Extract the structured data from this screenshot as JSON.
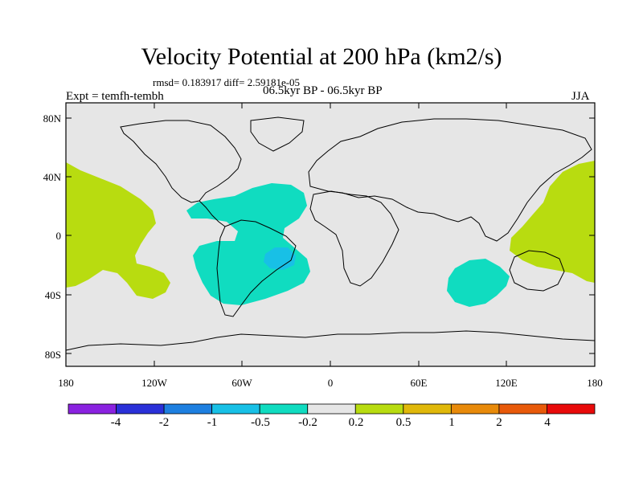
{
  "title": "Velocity Potential at 200 hPa (km2/s)",
  "stats": "rmsd= 0.183917  diff= 2.59181e-05",
  "experiment": "Expt = temfh-tembh",
  "period": "06.5kyr BP - 06.5kyr BP",
  "season": "JJA",
  "y_ticks": [
    "80N",
    "40N",
    "0",
    "40S",
    "80S"
  ],
  "x_ticks": [
    "180",
    "120W",
    "60W",
    "0",
    "60E",
    "120E",
    "180"
  ],
  "colorbar": {
    "colors": [
      "#8a22e0",
      "#2a30d8",
      "#1e7fe0",
      "#18c0e6",
      "#10dcc0",
      "#e6e6e6",
      "#b8dc10",
      "#e0b80a",
      "#e88a0a",
      "#e85a0a",
      "#e80a0a"
    ],
    "labels": [
      "-4",
      "-2",
      "-1",
      "-0.5",
      "-0.2",
      "0.2",
      "0.5",
      "1",
      "2",
      "4"
    ]
  },
  "colors": {
    "background": "#e6e6e6",
    "positive": "#b8dc10",
    "negative": "#10dcc0",
    "negative_strong": "#18c0e6"
  }
}
